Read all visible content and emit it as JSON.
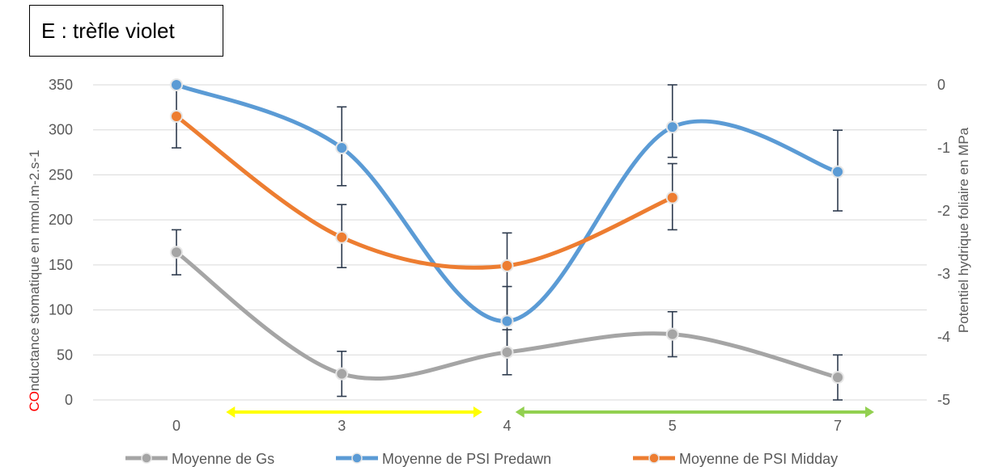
{
  "chart_data": {
    "type": "line",
    "title": "E : trèfle violet",
    "categories": [
      "0",
      "3",
      "4",
      "5",
      "7"
    ],
    "ylabel_left_prefix": "CO",
    "ylabel_left_rest": "nductance stomatique en mmol.m-2.s-1",
    "ylabel_right": "Potentiel hydrique foliaire en MPa",
    "y_left": {
      "min": 0,
      "max": 350,
      "step": 50,
      "ticks": [
        "0",
        "50",
        "100",
        "150",
        "200",
        "250",
        "300",
        "350"
      ]
    },
    "y_right": {
      "min": -5,
      "max": 0,
      "step": 1,
      "ticks": [
        "-5",
        "-4",
        "-3",
        "-2",
        "-1",
        "0"
      ]
    },
    "grid": true,
    "legend_position": "bottom",
    "series": [
      {
        "name": "Moyenne de Gs",
        "axis": "left",
        "color": "#a5a5a5",
        "values": [
          164,
          29,
          53,
          73,
          25
        ],
        "err_low": [
          139,
          4,
          28,
          48,
          0
        ],
        "err_high": [
          189,
          54,
          78,
          98,
          50
        ]
      },
      {
        "name": "Moyenne de PSI  Predawn",
        "axis": "right",
        "color": "#5b9bd5",
        "values": [
          0,
          -1.0,
          -3.75,
          -0.67,
          -1.38
        ],
        "err_low": [
          -0.5,
          -1.6,
          -4.25,
          -1.15,
          -2.0
        ],
        "err_high": [
          0,
          -0.35,
          -3.2,
          0,
          -0.72
        ]
      },
      {
        "name": "Moyenne de PSI  Midday",
        "axis": "right",
        "color": "#ed7d31",
        "values": [
          -0.5,
          -2.42,
          -2.87,
          -1.79,
          null
        ],
        "err_low": [
          -1.0,
          -2.9,
          -3.75,
          -2.3,
          null
        ],
        "err_high": [
          -0.5,
          -1.9,
          -2.35,
          -1.25,
          null
        ]
      }
    ],
    "arrows": [
      {
        "color": "#ffff00",
        "from_category": 0.3,
        "to_category": 1.85
      },
      {
        "color": "#92d050",
        "from_category": 2.05,
        "to_category": 4.22
      }
    ]
  },
  "colors": {
    "axis_red": "#ff0000",
    "text": "#595959",
    "grid": "#d9d9d9",
    "errorbar": "#2e3b4e"
  }
}
